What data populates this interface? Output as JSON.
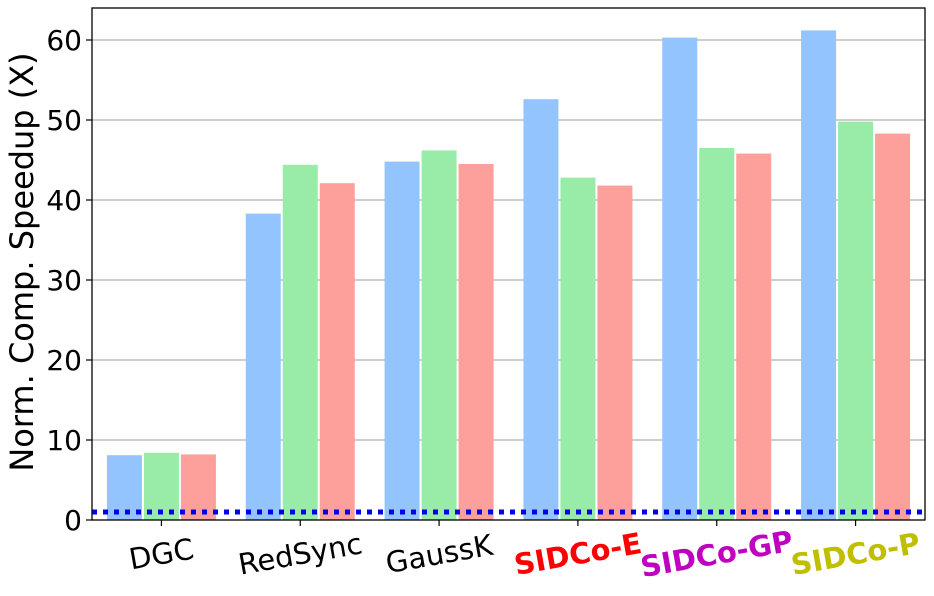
{
  "chart_data": {
    "type": "bar",
    "title": "",
    "xlabel": "",
    "ylabel": "Norm. Comp. Speedup (X)",
    "ylim": [
      0,
      64
    ],
    "yticks": [
      0,
      10,
      20,
      30,
      40,
      50,
      60
    ],
    "grid": "y",
    "legend": "none",
    "categories": [
      "DGC",
      "RedSync",
      "GaussK",
      "SIDCo-E",
      "SIDCo-GP",
      "SIDCo-P"
    ],
    "category_colors": [
      "#000000",
      "#000000",
      "#000000",
      "#ff0000",
      "#c000c0",
      "#bfbf00"
    ],
    "category_bold": [
      false,
      false,
      false,
      true,
      true,
      true
    ],
    "series": [
      {
        "color": "#93c4fe",
        "values": [
          8.1,
          38.3,
          44.8,
          52.6,
          60.3,
          61.2
        ]
      },
      {
        "color": "#98eca8",
        "values": [
          8.4,
          44.4,
          46.2,
          42.8,
          46.5,
          49.8
        ]
      },
      {
        "color": "#fd9f9a",
        "values": [
          8.2,
          42.1,
          44.5,
          41.8,
          45.8,
          48.3
        ]
      }
    ],
    "reference_line": {
      "y": 1,
      "color": "#0000ee",
      "style": "dotted"
    }
  }
}
